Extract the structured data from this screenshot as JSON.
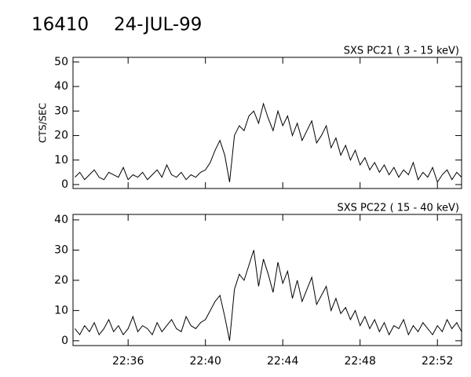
{
  "header": {
    "title": "16410",
    "subtitle": "24-JUL-99"
  },
  "chart_data": [
    {
      "type": "line",
      "title": "SXS PC21  (  3 - 15 keV)",
      "y_label": "CTS/SEC",
      "color": "#000000",
      "x": [
        1353.25,
        1353.5,
        1353.75,
        1354,
        1354.25,
        1354.5,
        1354.75,
        1355,
        1355.25,
        1355.5,
        1355.75,
        1356,
        1356.25,
        1356.5,
        1356.75,
        1357,
        1357.25,
        1357.5,
        1357.75,
        1358,
        1358.25,
        1358.5,
        1358.75,
        1359,
        1359.25,
        1359.5,
        1359.75,
        1360,
        1360.25,
        1360.5,
        1360.75,
        1361,
        1361.25,
        1361.5,
        1361.75,
        1362,
        1362.25,
        1362.5,
        1362.75,
        1363,
        1363.25,
        1363.5,
        1363.75,
        1364,
        1364.25,
        1364.5,
        1364.75,
        1365,
        1365.25,
        1365.5,
        1365.75,
        1366,
        1366.25,
        1366.5,
        1366.75,
        1367,
        1367.25,
        1367.5,
        1367.75,
        1368,
        1368.25,
        1368.5,
        1368.75,
        1369,
        1369.25,
        1369.5,
        1369.75,
        1370,
        1370.25,
        1370.5,
        1370.75,
        1371,
        1371.25,
        1371.5,
        1371.75,
        1372,
        1372.25,
        1372.5,
        1372.75,
        1373,
        1373.25
      ],
      "values": [
        3,
        5,
        2,
        4,
        6,
        3,
        2,
        5,
        4,
        3,
        7,
        2,
        4,
        3,
        5,
        2,
        4,
        6,
        3,
        8,
        4,
        3,
        5,
        2,
        4,
        3,
        5,
        6,
        9,
        14,
        18,
        12,
        1,
        20,
        24,
        22,
        28,
        30,
        25,
        33,
        27,
        22,
        30,
        24,
        28,
        20,
        25,
        18,
        22,
        26,
        17,
        20,
        24,
        15,
        19,
        12,
        16,
        10,
        14,
        8,
        11,
        6,
        9,
        5,
        8,
        4,
        7,
        3,
        6,
        4,
        9,
        2,
        5,
        3,
        7,
        1,
        4,
        6,
        2,
        5,
        3
      ],
      "xlim": [
        1353.15,
        1373.25
      ],
      "xticks": [
        1356,
        1360,
        1364,
        1368,
        1372
      ],
      "ylim": [
        -1.6,
        51.9
      ],
      "yticks": [
        0,
        10,
        20,
        30,
        40,
        50
      ]
    },
    {
      "type": "line",
      "title": "SXS PC22  ( 15 - 40 keV)",
      "color": "#000000",
      "x": [
        1353.25,
        1353.5,
        1353.75,
        1354,
        1354.25,
        1354.5,
        1354.75,
        1355,
        1355.25,
        1355.5,
        1355.75,
        1356,
        1356.25,
        1356.5,
        1356.75,
        1357,
        1357.25,
        1357.5,
        1357.75,
        1358,
        1358.25,
        1358.5,
        1358.75,
        1359,
        1359.25,
        1359.5,
        1359.75,
        1360,
        1360.25,
        1360.5,
        1360.75,
        1361,
        1361.25,
        1361.5,
        1361.75,
        1362,
        1362.25,
        1362.5,
        1362.75,
        1363,
        1363.25,
        1363.5,
        1363.75,
        1364,
        1364.25,
        1364.5,
        1364.75,
        1365,
        1365.25,
        1365.5,
        1365.75,
        1366,
        1366.25,
        1366.5,
        1366.75,
        1367,
        1367.25,
        1367.5,
        1367.75,
        1368,
        1368.25,
        1368.5,
        1368.75,
        1369,
        1369.25,
        1369.5,
        1369.75,
        1370,
        1370.25,
        1370.5,
        1370.75,
        1371,
        1371.25,
        1371.5,
        1371.75,
        1372,
        1372.25,
        1372.5,
        1372.75,
        1373,
        1373.25
      ],
      "values": [
        4,
        2,
        5,
        3,
        6,
        2,
        4,
        7,
        3,
        5,
        2,
        4,
        8,
        3,
        5,
        4,
        2,
        6,
        3,
        5,
        7,
        4,
        3,
        8,
        5,
        4,
        6,
        7,
        10,
        13,
        15,
        8,
        0,
        17,
        22,
        20,
        25,
        30,
        18,
        27,
        22,
        16,
        26,
        19,
        23,
        14,
        20,
        13,
        17,
        21,
        12,
        15,
        18,
        10,
        14,
        9,
        11,
        7,
        10,
        5,
        8,
        4,
        7,
        3,
        6,
        2,
        5,
        4,
        7,
        2,
        5,
        3,
        6,
        4,
        2,
        5,
        3,
        7,
        4,
        6,
        3
      ],
      "xlim": [
        1353.15,
        1373.25
      ],
      "xticks": [
        {
          "value": 1356,
          "label": "22:36"
        },
        {
          "value": 1360,
          "label": "22:40"
        },
        {
          "value": 1364,
          "label": "22:44"
        },
        {
          "value": 1368,
          "label": "22:48"
        },
        {
          "value": 1372,
          "label": "22:52"
        }
      ],
      "ylim": [
        -1.6,
        41.8
      ],
      "yticks": [
        0,
        10,
        20,
        30,
        40
      ]
    }
  ]
}
